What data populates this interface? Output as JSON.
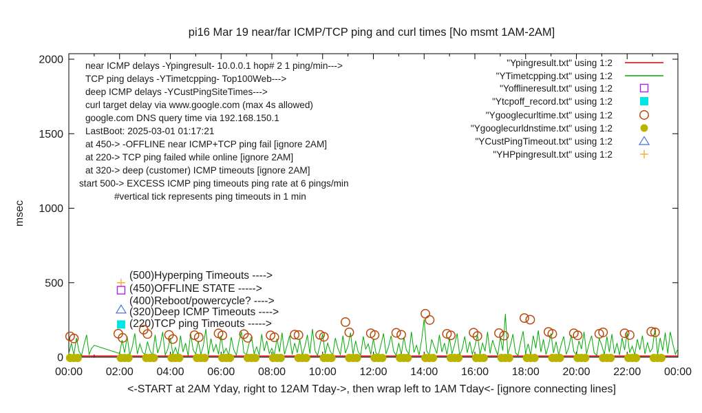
{
  "title": "pi16 Mar 19  near/far ICMP/TCP ping and curl times [No msmt 1AM-2AM]",
  "ylabel": "msec",
  "caption": "<-START at 2AM Yday, right to 12AM Tday->, then wrap left to 1AM Tday<- [ignore connecting lines]",
  "plot_annotations": [
    "near ICMP delays -Ypingresult- 10.0.0.1 hop# 2 1 ping/min--->",
    "TCP ping delays -YTimetcpping- Top100Web--->",
    "deep ICMP delays -YCustPingSiteTimes--->",
    "curl target delay via www.google.com (max 4s allowed)",
    "google.com DNS query time via 192.168.150.1",
    "LastBoot: 2025-03-01 01:17:21",
    "at 450-> -OFFLINE near ICMP+TCP ping fail [ignore 2AM]",
    "at 220-> TCP ping failed while online [ignore 2AM]",
    "at 320-> deep (customer) ICMP timeouts [ignore 2AM]",
    "start 500-> EXCESS ICMP ping timeouts ping rate at 6 pings/min",
    "#vertical tick represents ping timeouts in 1 min"
  ],
  "mid_annotations": [
    {
      "label": "(500)Hyperping Timeouts ---->",
      "value": 500,
      "x_hour": 2.06,
      "marker": "plus",
      "color": "#ffaa33"
    },
    {
      "label": "(450)OFFLINE STATE ----->",
      "value": 450,
      "x_hour": 2.06,
      "marker": "square-open",
      "color": "#a820f0"
    },
    {
      "label": "(400)Reboot/powercycle? ---->",
      "value": 400,
      "x_hour": 2.06,
      "marker": null,
      "color": null
    },
    {
      "label": "(320)Deep ICMP Timeouts ---->",
      "value": 320,
      "x_hour": 2.06,
      "marker": "triangle-open",
      "color": "#4470dd"
    },
    {
      "label": "(220)TCP ping Timeouts ----->",
      "value": 220,
      "x_hour": 2.06,
      "marker": "square-filled",
      "color": "#00e5e5"
    }
  ],
  "legend": {
    "items": [
      {
        "label": "\"Ypingresult.txt\" using 1:2",
        "sample": "line",
        "color": "#dd0000"
      },
      {
        "label": "\"YTimetcpping.txt\" using 1:2",
        "sample": "line",
        "color": "#00aa00"
      },
      {
        "label": "\"Yofflineresult.txt\" using 1:2",
        "sample": "square-open",
        "color": "#a820f0"
      },
      {
        "label": "\"Ytcpoff_record.txt\" using 1:2",
        "sample": "square-filled",
        "color": "#00e5e5"
      },
      {
        "label": "\"Ygooglecurltime.txt\" using 1:2",
        "sample": "circle-open",
        "color": "#b84a0c"
      },
      {
        "label": "\"Ygooglecurldnstime.txt\" using 1:2",
        "sample": "circle-filled",
        "color": "#b8b400"
      },
      {
        "label": "\"YCustPingTimeout.txt\" using 1:2",
        "sample": "triangle-open",
        "color": "#4470dd"
      },
      {
        "label": "\"YHPpingresult.txt\" using 1:2",
        "sample": "plus",
        "color": "#ffaa33"
      }
    ]
  },
  "chart_data": {
    "type": "line",
    "title": "pi16 Mar 19  near/far ICMP/TCP ping and curl times [No msmt 1AM-2AM]",
    "xlabel": "<-START at 2AM Yday, right to 12AM Tday->, then wrap left to 1AM Tday<- [ignore connecting lines]",
    "ylabel": "msec",
    "ylim": [
      0,
      2000
    ],
    "yticks": [
      0,
      500,
      1000,
      1500,
      2000
    ],
    "xlim_hours": [
      0,
      24
    ],
    "xtick_step_hours": 2,
    "xtick_labels": [
      "00:00",
      "02:00",
      "04:00",
      "06:00",
      "08:00",
      "10:00",
      "12:00",
      "14:00",
      "16:00",
      "18:00",
      "20:00",
      "22:00",
      "00:00"
    ],
    "grid": false,
    "legend_position": "top-right-inside",
    "series": [
      {
        "name": "Ypingresult near ICMP delay",
        "style": "line",
        "color": "#dd0000",
        "constant_y": 8
      },
      {
        "name": "YTimetcpping TCP ping delay",
        "style": "line",
        "color": "#00aa00",
        "x_start_hour": 0,
        "x_step_hour": 0.1,
        "gap_note": "null = no measurement 1AM-2AM; gap endpoints joined by stray connecting line",
        "values": [
          25,
          95,
          15,
          130,
          40,
          10,
          85,
          150,
          20,
          60,
          80,
          null,
          null,
          null,
          null,
          null,
          null,
          null,
          null,
          null,
          25,
          115,
          30,
          140,
          15,
          70,
          160,
          22,
          90,
          35,
          18,
          105,
          45,
          12,
          150,
          28,
          80,
          170,
          15,
          55,
          130,
          20,
          65,
          15,
          145,
          35,
          95,
          12,
          160,
          48,
          22,
          110,
          18,
          75,
          190,
          15,
          125,
          38,
          85,
          20,
          145,
          25,
          60,
          12,
          135,
          50,
          15,
          105,
          170,
          30,
          18,
          90,
          140,
          22,
          70,
          15,
          155,
          42,
          110,
          25,
          60,
          15,
          125,
          35,
          165,
          20,
          80,
          145,
          18,
          95,
          30,
          120,
          15,
          70,
          150,
          25,
          190,
          45,
          12,
          85,
          155,
          22,
          95,
          40,
          15,
          130,
          60,
          18,
          145,
          28,
          75,
          165,
          20,
          110,
          35,
          15,
          140,
          55,
          90,
          18,
          125,
          30,
          15,
          85,
          160,
          22,
          70,
          145,
          40,
          12,
          95,
          18,
          135,
          50,
          20,
          170,
          32,
          80,
          15,
          115,
          255,
          45,
          15,
          120,
          70,
          25,
          150,
          35,
          95,
          18,
          130,
          22,
          85,
          160,
          15,
          55,
          140,
          30,
          105,
          20,
          70,
          150,
          18,
          95,
          40,
          170,
          25,
          115,
          60,
          15,
          135,
          45,
          290,
          20,
          80,
          155,
          30,
          12,
          100,
          175,
          25,
          90,
          15,
          145,
          60,
          180,
          35,
          120,
          18,
          75,
          160,
          28,
          105,
          15,
          85,
          140,
          20,
          65,
          150,
          38,
          15,
          110,
          55,
          170,
          22,
          90,
          145,
          30,
          12,
          125,
          80,
          18,
          140,
          35,
          155,
          25,
          95,
          15,
          130,
          48,
          165,
          30,
          75,
          15,
          120,
          50,
          145,
          22,
          100,
          35,
          60,
          200,
          18,
          130,
          45,
          165,
          25,
          170,
          90,
          20,
          55
        ]
      },
      {
        "name": "Ygooglecurltime curl delay",
        "style": "circle-open",
        "color": "#b84a0c",
        "points": [
          [
            0.05,
            140
          ],
          [
            0.2,
            126
          ],
          [
            1.95,
            158
          ],
          [
            2.12,
            130
          ],
          [
            2.95,
            185
          ],
          [
            3.1,
            156
          ],
          [
            3.95,
            150
          ],
          [
            4.1,
            122
          ],
          [
            4.95,
            148
          ],
          [
            5.12,
            134
          ],
          [
            5.9,
            160
          ],
          [
            6.05,
            147
          ],
          [
            6.9,
            155
          ],
          [
            7.05,
            130
          ],
          [
            7.95,
            147
          ],
          [
            8.1,
            134
          ],
          [
            8.9,
            152
          ],
          [
            9.05,
            149
          ],
          [
            9.9,
            150
          ],
          [
            10.05,
            137
          ],
          [
            10.9,
            236
          ],
          [
            11.05,
            167
          ],
          [
            11.9,
            161
          ],
          [
            12.05,
            149
          ],
          [
            12.9,
            164
          ],
          [
            13.1,
            151
          ],
          [
            14.05,
            292
          ],
          [
            14.22,
            250
          ],
          [
            14.9,
            157
          ],
          [
            15.05,
            147
          ],
          [
            15.95,
            165
          ],
          [
            16.1,
            142
          ],
          [
            16.95,
            162
          ],
          [
            17.15,
            145
          ],
          [
            17.95,
            263
          ],
          [
            18.18,
            252
          ],
          [
            18.9,
            170
          ],
          [
            19.05,
            157
          ],
          [
            19.9,
            161
          ],
          [
            20.05,
            147
          ],
          [
            20.9,
            157
          ],
          [
            21.05,
            167
          ],
          [
            21.9,
            161
          ],
          [
            22.1,
            149
          ],
          [
            22.95,
            172
          ],
          [
            23.1,
            167
          ]
        ]
      },
      {
        "name": "Ygooglecurldnstime DNS query time",
        "style": "circle-filled",
        "color": "#b8b400",
        "y": 0,
        "cluster_hours": [
          0,
          2,
          3,
          4,
          5,
          6,
          7,
          8,
          9,
          10,
          11,
          12,
          13,
          14,
          15,
          16,
          17,
          18,
          19,
          20,
          21,
          22,
          23
        ],
        "cluster_offsets": [
          0.05,
          0.2,
          0.35
        ]
      },
      {
        "name": "Yofflineresult OFFLINE state",
        "style": "square-open",
        "color": "#a820f0",
        "points": []
      },
      {
        "name": "Ytcpoff_record TCP-off record",
        "style": "square-filled",
        "color": "#00e5e5",
        "points": []
      },
      {
        "name": "YCustPingTimeout deep ICMP timeouts",
        "style": "triangle-open",
        "color": "#4470dd",
        "points": []
      },
      {
        "name": "YHPpingresult hyperping timeouts",
        "style": "plus",
        "color": "#ffaa33",
        "points": []
      }
    ]
  }
}
